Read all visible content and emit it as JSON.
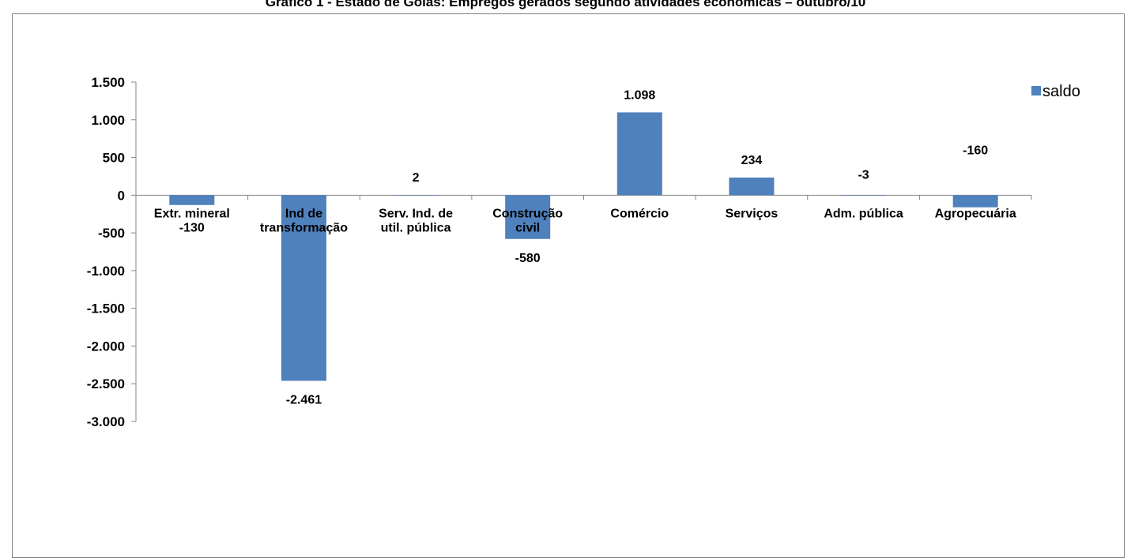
{
  "page_title": "Gráfico 1 - Estado de Goiás: Empregos gerados segundo atividades econômicas – outubro/10",
  "chart_data": {
    "type": "bar",
    "title": "",
    "xlabel": "",
    "ylabel": "",
    "ylim": [
      -3000,
      1500
    ],
    "yticks": [
      1500,
      1000,
      500,
      0,
      -500,
      -1000,
      -1500,
      -2000,
      -2500,
      -3000
    ],
    "ytick_labels": [
      "1.500",
      "1.000",
      "500",
      "0",
      "-500",
      "-1.000",
      "-1.500",
      "-2.000",
      "-2.500",
      "-3.000"
    ],
    "categories": [
      [
        "Extr. mineral"
      ],
      [
        "Ind de",
        "transformação"
      ],
      [
        "Serv. Ind. de",
        "util. pública"
      ],
      [
        "Construção",
        "civil"
      ],
      [
        "Comércio"
      ],
      [
        "Serviços"
      ],
      [
        "Adm. pública"
      ],
      [
        "Agropecuária"
      ]
    ],
    "series": [
      {
        "name": "saldo",
        "color": "#4f81bd",
        "values": [
          -130,
          -2461,
          2,
          -580,
          1098,
          234,
          -3,
          -160
        ],
        "value_labels": [
          "-130",
          "-2.461",
          "2",
          "-580",
          "1.098",
          "234",
          "-3",
          "-160"
        ]
      }
    ],
    "grid": false,
    "legend_position": "top-right"
  }
}
